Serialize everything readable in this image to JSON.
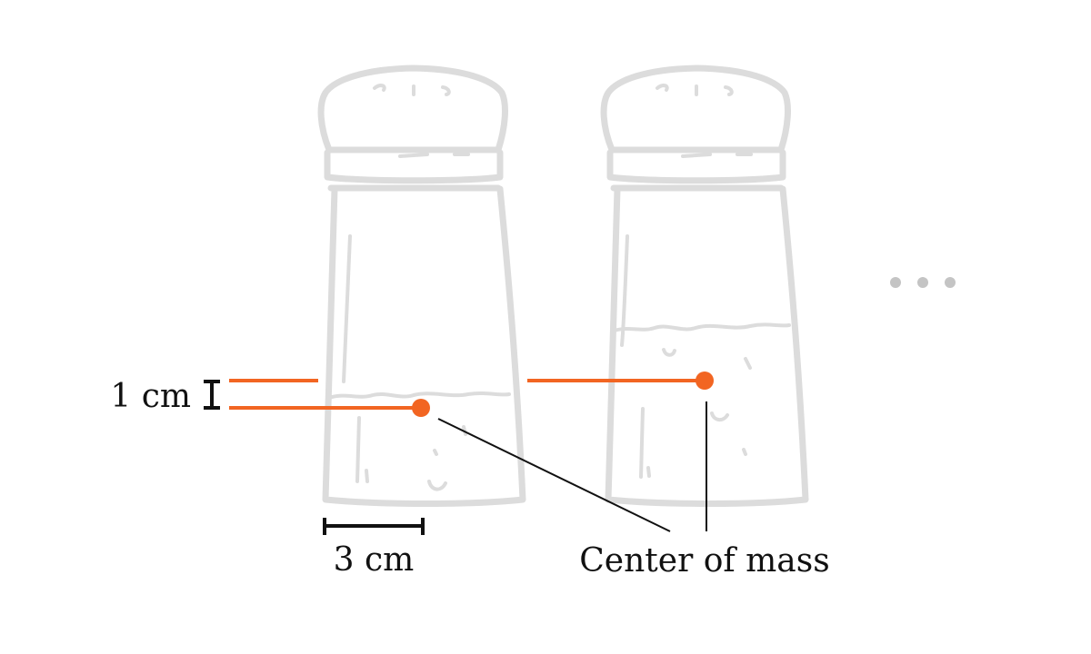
{
  "labels": {
    "height_scale": "1 cm",
    "width_scale": "3 cm",
    "center_of_mass": "Center of mass"
  },
  "colors": {
    "accent": "#f26522",
    "sketch": "#dcdcdc",
    "ink": "#111111",
    "ellipsis": "#c4c4c4"
  },
  "icons": {
    "shaker_1": "salt-shaker-icon",
    "shaker_2": "salt-shaker-icon",
    "more": "ellipsis-icon"
  }
}
